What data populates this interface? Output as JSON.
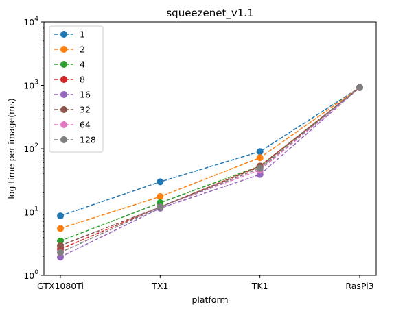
{
  "chart_data": {
    "type": "line",
    "title": "squeezenet_v1.1",
    "xlabel": "platform",
    "ylabel": "log time per image(ms)",
    "yscale": "log",
    "ylim": [
      1,
      10000
    ],
    "y_ticks": [
      {
        "value": 1,
        "base": "10",
        "exp": "0"
      },
      {
        "value": 10,
        "base": "10",
        "exp": "1"
      },
      {
        "value": 100,
        "base": "10",
        "exp": "2"
      },
      {
        "value": 1000,
        "base": "10",
        "exp": "3"
      },
      {
        "value": 10000,
        "base": "10",
        "exp": "4"
      }
    ],
    "categories": [
      "GTX1080Ti",
      "TX1",
      "TK1",
      "RasPi3"
    ],
    "grid": false,
    "legend_position": "top-left",
    "line_style": "dashed",
    "marker": "circle",
    "series": [
      {
        "name": "1",
        "color": "#1f77b4",
        "values": [
          8.7,
          30,
          90,
          920
        ]
      },
      {
        "name": "2",
        "color": "#ff7f0e",
        "values": [
          5.5,
          17.5,
          72,
          920
        ]
      },
      {
        "name": "4",
        "color": "#2ca02c",
        "values": [
          3.5,
          14,
          53,
          920
        ]
      },
      {
        "name": "8",
        "color": "#d62728",
        "values": [
          2.6,
          12,
          53,
          920
        ]
      },
      {
        "name": "16",
        "color": "#9467bd",
        "values": [
          1.95,
          11.5,
          39,
          920
        ]
      },
      {
        "name": "32",
        "color": "#8c564b",
        "values": [
          2.95,
          12,
          52,
          920
        ]
      },
      {
        "name": "64",
        "color": "#e377c2",
        "values": [
          2.3,
          12,
          46,
          920
        ]
      },
      {
        "name": "128",
        "color": "#7f7f7f",
        "values": [
          2.3,
          12,
          49,
          920
        ]
      }
    ]
  }
}
